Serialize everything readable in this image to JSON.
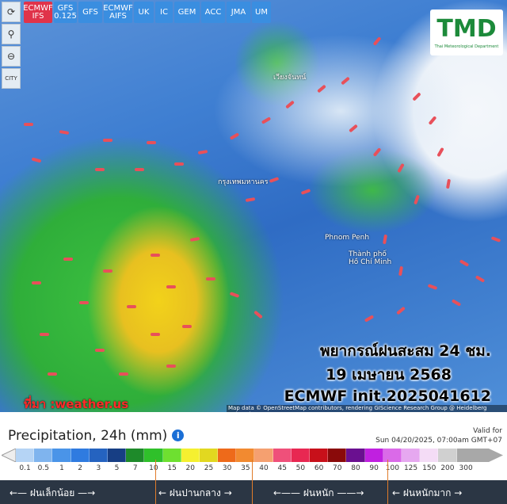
{
  "toolbar": {
    "models": [
      {
        "label": "ECMWF IFS",
        "active": true
      },
      {
        "label": "GFS 0.125"
      },
      {
        "label": "GFS"
      },
      {
        "label": "ECMWF AIFS"
      },
      {
        "label": "UK"
      },
      {
        "label": "IC"
      },
      {
        "label": "GEM"
      },
      {
        "label": "ACC"
      },
      {
        "label": "JMA"
      },
      {
        "label": "UM"
      }
    ],
    "side": [
      {
        "icon": "refresh-icon",
        "glyph": "⟳"
      },
      {
        "icon": "location-pin-icon",
        "glyph": "⚲"
      },
      {
        "icon": "zoom-out-icon",
        "glyph": "⊖"
      },
      {
        "icon": "city-icon",
        "glyph": "CITY"
      }
    ]
  },
  "logo": {
    "text": "TMD",
    "sub": "Thai Meteorological Department"
  },
  "map": {
    "labels": [
      "เวียงจันทน์",
      "กรุงเทพมหานคร",
      "Phnom Penh",
      "Thành phố Hồ Chí Minh"
    ],
    "overlay": [
      "พยากรณ์ฝนสะสม 24 ชม.",
      "19 เมษายน 2568",
      "ECMWF init.2025041612"
    ],
    "source": "ที่มา :weather.us",
    "attribution": "Map data © OpenStreetMap contributors, rendering GIScience Research Group @ Heidelberg University",
    "arrow_color": "#e8505a"
  },
  "legend": {
    "title": "Precipitation, 24h (mm)",
    "info_icon": "info-icon",
    "valid_label": "Valid for",
    "valid_time": "Sun 04/20/2025, 07:00am GMT+07",
    "ticks": [
      "0.1",
      "0.5",
      "1",
      "2",
      "3",
      "5",
      "7",
      "10",
      "15",
      "20",
      "25",
      "30",
      "35",
      "40",
      "45",
      "50",
      "60",
      "70",
      "80",
      "90",
      "100",
      "125",
      "150",
      "200",
      "300"
    ],
    "colors": [
      "#b5d4f5",
      "#7fb4ee",
      "#4a94e8",
      "#2f7be0",
      "#2563c0",
      "#173e84",
      "#1e8a2a",
      "#2fc02a",
      "#6ee030",
      "#f5f030",
      "#e2d820",
      "#ee6a1a",
      "#f28a30",
      "#f5a070",
      "#ef507a",
      "#e82852",
      "#c8101a",
      "#8a0a0a",
      "#6a1090",
      "#c020e0",
      "#da6ae8",
      "#e6a8f0",
      "#f4dcf6",
      "#d0d0d0"
    ],
    "categories": [
      "ฝนเล็กน้อย",
      "ฝนปานกลาง",
      "ฝนหนัก",
      "ฝนหนักมาก"
    ]
  }
}
